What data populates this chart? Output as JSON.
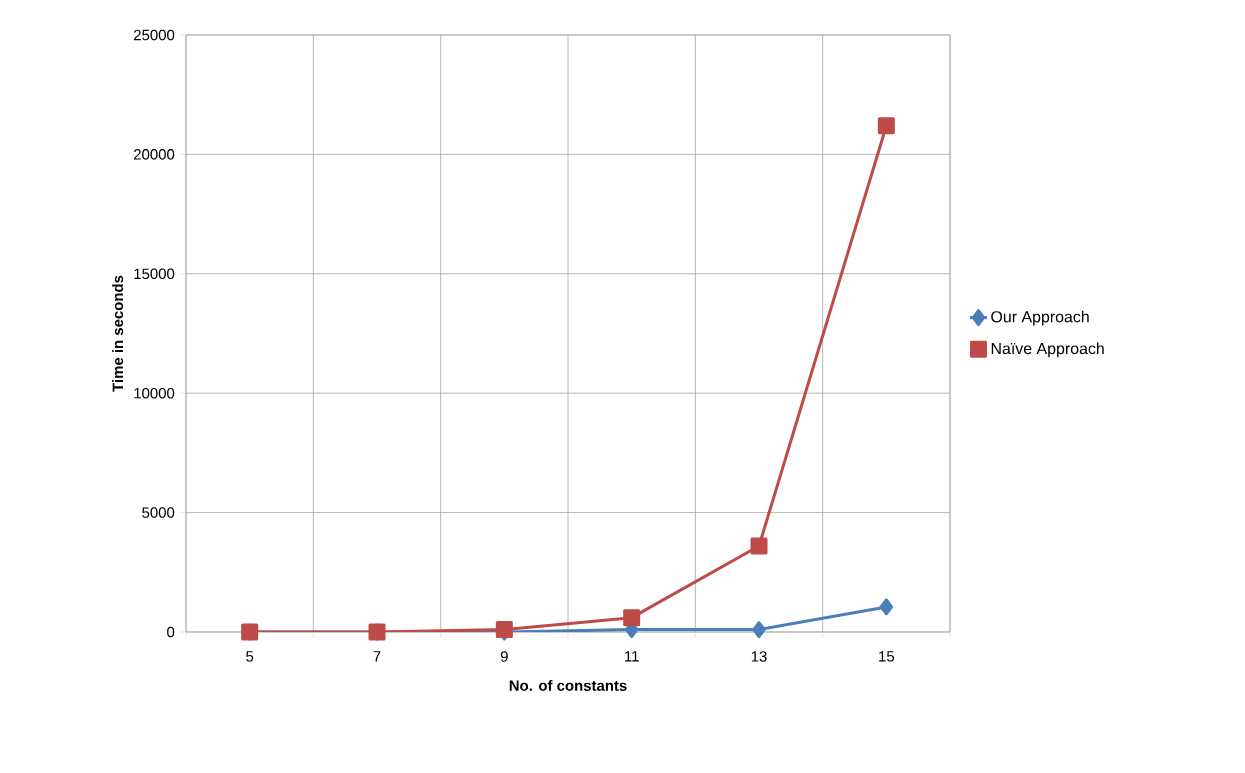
{
  "chart_data": {
    "type": "line",
    "xlabel": "No. of constants",
    "ylabel": "Time in seconds",
    "categories": [
      "5",
      "7",
      "9",
      "11",
      "13",
      "15"
    ],
    "series": [
      {
        "name": "Our Approach",
        "color": "#4a7ebb",
        "marker": "diamond",
        "values": [
          0,
          0,
          0,
          100,
          100,
          1050
        ]
      },
      {
        "name": "Naïve Approach",
        "color": "#be4b48",
        "marker": "square",
        "values": [
          0,
          0,
          100,
          600,
          3600,
          21200
        ]
      }
    ],
    "ylim": [
      0,
      25000
    ],
    "yticks": [
      0,
      5000,
      10000,
      15000,
      20000,
      25000
    ],
    "grid": true,
    "legend": "right",
    "line_style": "solid"
  }
}
